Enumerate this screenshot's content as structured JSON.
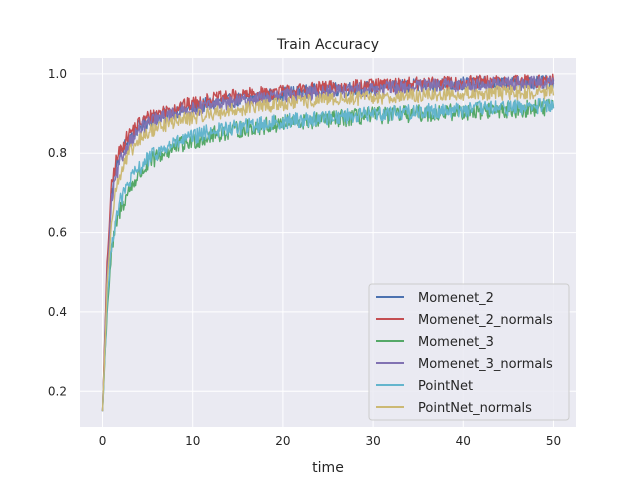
{
  "chart_data": {
    "type": "line",
    "title": "Train Accuracy",
    "xlabel": "time",
    "ylabel": "",
    "xlim": [
      -2.5,
      52.5
    ],
    "ylim": [
      0.11,
      1.04
    ],
    "xticks": [
      0,
      10,
      20,
      30,
      40,
      50
    ],
    "yticks": [
      0.2,
      0.4,
      0.6,
      0.8,
      1.0
    ],
    "xtick_labels": [
      "0",
      "10",
      "20",
      "30",
      "40",
      "50"
    ],
    "ytick_labels": [
      "0.2",
      "0.4",
      "0.6",
      "0.8",
      "1.0"
    ],
    "grid": true,
    "legend_position": "lower-right",
    "x": [
      0,
      0.5,
      1,
      1.5,
      2,
      3,
      4,
      5,
      6,
      8,
      10,
      12,
      15,
      20,
      25,
      30,
      35,
      40,
      45,
      50
    ],
    "series": [
      {
        "name": "Momenet_2",
        "color": "#4c72b0",
        "noise": 0.018,
        "values": [
          0.15,
          0.5,
          0.7,
          0.76,
          0.8,
          0.84,
          0.865,
          0.88,
          0.89,
          0.905,
          0.915,
          0.925,
          0.935,
          0.95,
          0.96,
          0.965,
          0.97,
          0.975,
          0.975,
          0.98
        ]
      },
      {
        "name": "Momenet_2_normals",
        "color": "#c44e52",
        "noise": 0.018,
        "values": [
          0.15,
          0.52,
          0.72,
          0.78,
          0.81,
          0.85,
          0.875,
          0.89,
          0.9,
          0.915,
          0.925,
          0.935,
          0.945,
          0.955,
          0.965,
          0.97,
          0.975,
          0.978,
          0.98,
          0.982
        ]
      },
      {
        "name": "Momenet_3",
        "color": "#55a868",
        "noise": 0.022,
        "values": [
          0.15,
          0.4,
          0.55,
          0.62,
          0.66,
          0.71,
          0.745,
          0.77,
          0.79,
          0.815,
          0.83,
          0.845,
          0.86,
          0.875,
          0.885,
          0.895,
          0.9,
          0.905,
          0.91,
          0.915
        ]
      },
      {
        "name": "Momenet_3_normals",
        "color": "#8172b2",
        "noise": 0.018,
        "values": [
          0.15,
          0.48,
          0.68,
          0.74,
          0.78,
          0.83,
          0.855,
          0.875,
          0.885,
          0.9,
          0.91,
          0.92,
          0.93,
          0.945,
          0.955,
          0.962,
          0.968,
          0.972,
          0.975,
          0.978
        ]
      },
      {
        "name": "PointNet",
        "color": "#64b5cd",
        "noise": 0.02,
        "values": [
          0.15,
          0.42,
          0.57,
          0.64,
          0.68,
          0.73,
          0.76,
          0.785,
          0.8,
          0.825,
          0.84,
          0.855,
          0.865,
          0.88,
          0.89,
          0.9,
          0.905,
          0.91,
          0.915,
          0.92
        ]
      },
      {
        "name": "PointNet_normals",
        "color": "#ccb974",
        "noise": 0.018,
        "values": [
          0.15,
          0.46,
          0.64,
          0.71,
          0.75,
          0.8,
          0.83,
          0.85,
          0.865,
          0.88,
          0.89,
          0.9,
          0.91,
          0.925,
          0.935,
          0.94,
          0.945,
          0.95,
          0.952,
          0.955
        ]
      }
    ]
  }
}
